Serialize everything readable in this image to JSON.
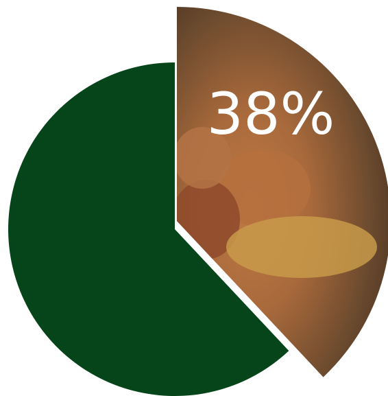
{
  "chart_data": {
    "type": "pie",
    "values": [
      38,
      62
    ],
    "value_labels": [
      "38%",
      null
    ],
    "colors": [
      "#7a5232",
      "#06441a"
    ]
  }
}
